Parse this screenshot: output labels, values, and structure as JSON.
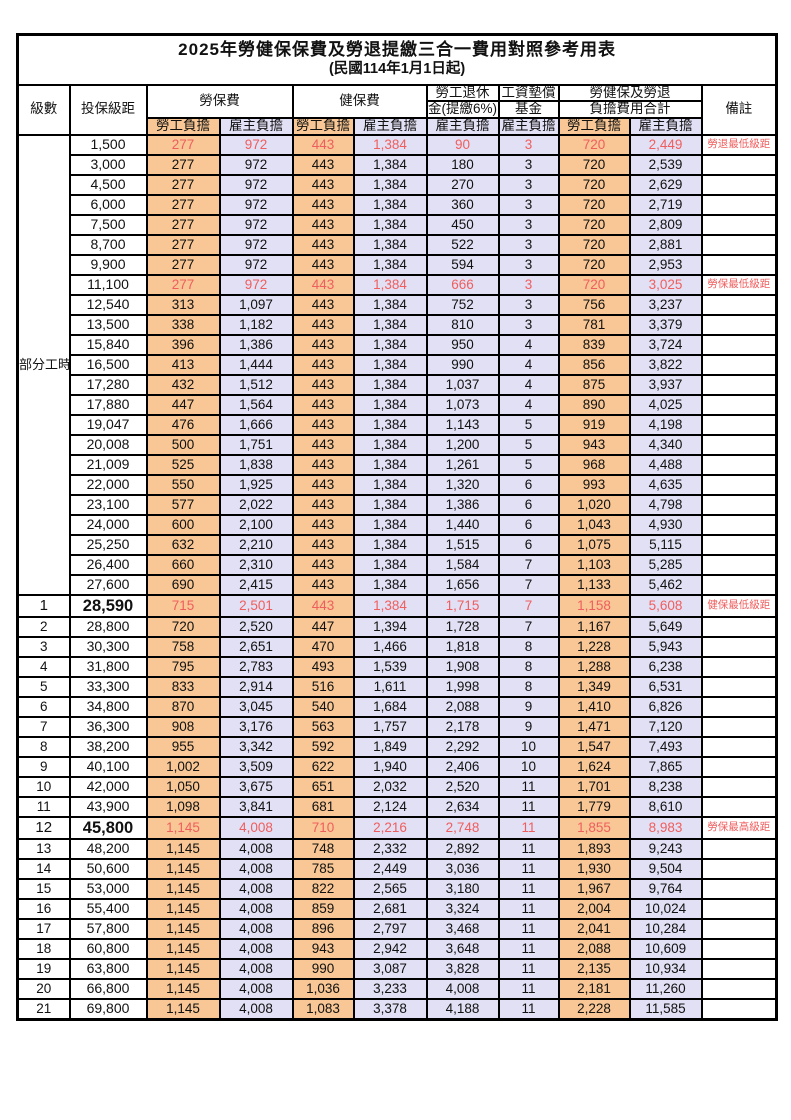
{
  "title": "2025年勞健保保費及勞退提繳三合一費用對照參考用表",
  "subtitle": "(民國114年1月1日起)",
  "colors": {
    "employee_bg": "#f8c795",
    "employer_bg": "#e2e0f4",
    "red_text": "#ef5e5e",
    "grid_line": "#000000"
  },
  "header": {
    "level": "級數",
    "bracket": "投保級距",
    "labor_ins": "勞保費",
    "health_ins": "健保費",
    "pension_line1": "勞工退休",
    "pension_line2": "金(提繳6%)",
    "wage_fund_line1": "工資墊償",
    "wage_fund_line2": "基金",
    "total_line1": "勞健保及勞退",
    "total_line2": "負擔費用合計",
    "remark": "備註",
    "employee_label": "勞工負擔",
    "employer_label": "雇主負擔"
  },
  "part_time_label": "部分工時",
  "rows": [
    {
      "level": "",
      "bracket": "1,500",
      "values": [
        "277",
        "972",
        "443",
        "1,384",
        "90",
        "3",
        "720",
        "2,449"
      ],
      "remark": "勞退最低級距",
      "red": true,
      "emph": false
    },
    {
      "level": "",
      "bracket": "3,000",
      "values": [
        "277",
        "972",
        "443",
        "1,384",
        "180",
        "3",
        "720",
        "2,539"
      ],
      "remark": "",
      "red": false,
      "emph": false
    },
    {
      "level": "",
      "bracket": "4,500",
      "values": [
        "277",
        "972",
        "443",
        "1,384",
        "270",
        "3",
        "720",
        "2,629"
      ],
      "remark": "",
      "red": false,
      "emph": false
    },
    {
      "level": "",
      "bracket": "6,000",
      "values": [
        "277",
        "972",
        "443",
        "1,384",
        "360",
        "3",
        "720",
        "2,719"
      ],
      "remark": "",
      "red": false,
      "emph": false
    },
    {
      "level": "",
      "bracket": "7,500",
      "values": [
        "277",
        "972",
        "443",
        "1,384",
        "450",
        "3",
        "720",
        "2,809"
      ],
      "remark": "",
      "red": false,
      "emph": false
    },
    {
      "level": "",
      "bracket": "8,700",
      "values": [
        "277",
        "972",
        "443",
        "1,384",
        "522",
        "3",
        "720",
        "2,881"
      ],
      "remark": "",
      "red": false,
      "emph": false
    },
    {
      "level": "",
      "bracket": "9,900",
      "values": [
        "277",
        "972",
        "443",
        "1,384",
        "594",
        "3",
        "720",
        "2,953"
      ],
      "remark": "",
      "red": false,
      "emph": false
    },
    {
      "level": "",
      "bracket": "11,100",
      "values": [
        "277",
        "972",
        "443",
        "1,384",
        "666",
        "3",
        "720",
        "3,025"
      ],
      "remark": "勞保最低級距",
      "red": true,
      "emph": false
    },
    {
      "level": "",
      "bracket": "12,540",
      "values": [
        "313",
        "1,097",
        "443",
        "1,384",
        "752",
        "3",
        "756",
        "3,237"
      ],
      "remark": "",
      "red": false,
      "emph": false
    },
    {
      "level": "",
      "bracket": "13,500",
      "values": [
        "338",
        "1,182",
        "443",
        "1,384",
        "810",
        "3",
        "781",
        "3,379"
      ],
      "remark": "",
      "red": false,
      "emph": false
    },
    {
      "level": "",
      "bracket": "15,840",
      "values": [
        "396",
        "1,386",
        "443",
        "1,384",
        "950",
        "4",
        "839",
        "3,724"
      ],
      "remark": "",
      "red": false,
      "emph": false
    },
    {
      "level": "",
      "bracket": "16,500",
      "values": [
        "413",
        "1,444",
        "443",
        "1,384",
        "990",
        "4",
        "856",
        "3,822"
      ],
      "remark": "",
      "red": false,
      "emph": false
    },
    {
      "level": "",
      "bracket": "17,280",
      "values": [
        "432",
        "1,512",
        "443",
        "1,384",
        "1,037",
        "4",
        "875",
        "3,937"
      ],
      "remark": "",
      "red": false,
      "emph": false
    },
    {
      "level": "",
      "bracket": "17,880",
      "values": [
        "447",
        "1,564",
        "443",
        "1,384",
        "1,073",
        "4",
        "890",
        "4,025"
      ],
      "remark": "",
      "red": false,
      "emph": false
    },
    {
      "level": "",
      "bracket": "19,047",
      "values": [
        "476",
        "1,666",
        "443",
        "1,384",
        "1,143",
        "5",
        "919",
        "4,198"
      ],
      "remark": "",
      "red": false,
      "emph": false
    },
    {
      "level": "",
      "bracket": "20,008",
      "values": [
        "500",
        "1,751",
        "443",
        "1,384",
        "1,200",
        "5",
        "943",
        "4,340"
      ],
      "remark": "",
      "red": false,
      "emph": false
    },
    {
      "level": "",
      "bracket": "21,009",
      "values": [
        "525",
        "1,838",
        "443",
        "1,384",
        "1,261",
        "5",
        "968",
        "4,488"
      ],
      "remark": "",
      "red": false,
      "emph": false
    },
    {
      "level": "",
      "bracket": "22,000",
      "values": [
        "550",
        "1,925",
        "443",
        "1,384",
        "1,320",
        "6",
        "993",
        "4,635"
      ],
      "remark": "",
      "red": false,
      "emph": false
    },
    {
      "level": "",
      "bracket": "23,100",
      "values": [
        "577",
        "2,022",
        "443",
        "1,384",
        "1,386",
        "6",
        "1,020",
        "4,798"
      ],
      "remark": "",
      "red": false,
      "emph": false
    },
    {
      "level": "",
      "bracket": "24,000",
      "values": [
        "600",
        "2,100",
        "443",
        "1,384",
        "1,440",
        "6",
        "1,043",
        "4,930"
      ],
      "remark": "",
      "red": false,
      "emph": false
    },
    {
      "level": "",
      "bracket": "25,250",
      "values": [
        "632",
        "2,210",
        "443",
        "1,384",
        "1,515",
        "6",
        "1,075",
        "5,115"
      ],
      "remark": "",
      "red": false,
      "emph": false
    },
    {
      "level": "",
      "bracket": "26,400",
      "values": [
        "660",
        "2,310",
        "443",
        "1,384",
        "1,584",
        "7",
        "1,103",
        "5,285"
      ],
      "remark": "",
      "red": false,
      "emph": false
    },
    {
      "level": "",
      "bracket": "27,600",
      "values": [
        "690",
        "2,415",
        "443",
        "1,384",
        "1,656",
        "7",
        "1,133",
        "5,462"
      ],
      "remark": "",
      "red": false,
      "emph": false
    },
    {
      "level": "1",
      "bracket": "28,590",
      "values": [
        "715",
        "2,501",
        "443",
        "1,384",
        "1,715",
        "7",
        "1,158",
        "5,608"
      ],
      "remark": "健保最低級距",
      "red": true,
      "emph": true
    },
    {
      "level": "2",
      "bracket": "28,800",
      "values": [
        "720",
        "2,520",
        "447",
        "1,394",
        "1,728",
        "7",
        "1,167",
        "5,649"
      ],
      "remark": "",
      "red": false,
      "emph": false
    },
    {
      "level": "3",
      "bracket": "30,300",
      "values": [
        "758",
        "2,651",
        "470",
        "1,466",
        "1,818",
        "8",
        "1,228",
        "5,943"
      ],
      "remark": "",
      "red": false,
      "emph": false
    },
    {
      "level": "4",
      "bracket": "31,800",
      "values": [
        "795",
        "2,783",
        "493",
        "1,539",
        "1,908",
        "8",
        "1,288",
        "6,238"
      ],
      "remark": "",
      "red": false,
      "emph": false
    },
    {
      "level": "5",
      "bracket": "33,300",
      "values": [
        "833",
        "2,914",
        "516",
        "1,611",
        "1,998",
        "8",
        "1,349",
        "6,531"
      ],
      "remark": "",
      "red": false,
      "emph": false
    },
    {
      "level": "6",
      "bracket": "34,800",
      "values": [
        "870",
        "3,045",
        "540",
        "1,684",
        "2,088",
        "9",
        "1,410",
        "6,826"
      ],
      "remark": "",
      "red": false,
      "emph": false
    },
    {
      "level": "7",
      "bracket": "36,300",
      "values": [
        "908",
        "3,176",
        "563",
        "1,757",
        "2,178",
        "9",
        "1,471",
        "7,120"
      ],
      "remark": "",
      "red": false,
      "emph": false
    },
    {
      "level": "8",
      "bracket": "38,200",
      "values": [
        "955",
        "3,342",
        "592",
        "1,849",
        "2,292",
        "10",
        "1,547",
        "7,493"
      ],
      "remark": "",
      "red": false,
      "emph": false
    },
    {
      "level": "9",
      "bracket": "40,100",
      "values": [
        "1,002",
        "3,509",
        "622",
        "1,940",
        "2,406",
        "10",
        "1,624",
        "7,865"
      ],
      "remark": "",
      "red": false,
      "emph": false
    },
    {
      "level": "10",
      "bracket": "42,000",
      "values": [
        "1,050",
        "3,675",
        "651",
        "2,032",
        "2,520",
        "11",
        "1,701",
        "8,238"
      ],
      "remark": "",
      "red": false,
      "emph": false
    },
    {
      "level": "11",
      "bracket": "43,900",
      "values": [
        "1,098",
        "3,841",
        "681",
        "2,124",
        "2,634",
        "11",
        "1,779",
        "8,610"
      ],
      "remark": "",
      "red": false,
      "emph": false
    },
    {
      "level": "12",
      "bracket": "45,800",
      "values": [
        "1,145",
        "4,008",
        "710",
        "2,216",
        "2,748",
        "11",
        "1,855",
        "8,983"
      ],
      "remark": "勞保最高級距",
      "red": true,
      "emph": true
    },
    {
      "level": "13",
      "bracket": "48,200",
      "values": [
        "1,145",
        "4,008",
        "748",
        "2,332",
        "2,892",
        "11",
        "1,893",
        "9,243"
      ],
      "remark": "",
      "red": false,
      "emph": false
    },
    {
      "level": "14",
      "bracket": "50,600",
      "values": [
        "1,145",
        "4,008",
        "785",
        "2,449",
        "3,036",
        "11",
        "1,930",
        "9,504"
      ],
      "remark": "",
      "red": false,
      "emph": false
    },
    {
      "level": "15",
      "bracket": "53,000",
      "values": [
        "1,145",
        "4,008",
        "822",
        "2,565",
        "3,180",
        "11",
        "1,967",
        "9,764"
      ],
      "remark": "",
      "red": false,
      "emph": false
    },
    {
      "level": "16",
      "bracket": "55,400",
      "values": [
        "1,145",
        "4,008",
        "859",
        "2,681",
        "3,324",
        "11",
        "2,004",
        "10,024"
      ],
      "remark": "",
      "red": false,
      "emph": false
    },
    {
      "level": "17",
      "bracket": "57,800",
      "values": [
        "1,145",
        "4,008",
        "896",
        "2,797",
        "3,468",
        "11",
        "2,041",
        "10,284"
      ],
      "remark": "",
      "red": false,
      "emph": false
    },
    {
      "level": "18",
      "bracket": "60,800",
      "values": [
        "1,145",
        "4,008",
        "943",
        "2,942",
        "3,648",
        "11",
        "2,088",
        "10,609"
      ],
      "remark": "",
      "red": false,
      "emph": false
    },
    {
      "level": "19",
      "bracket": "63,800",
      "values": [
        "1,145",
        "4,008",
        "990",
        "3,087",
        "3,828",
        "11",
        "2,135",
        "10,934"
      ],
      "remark": "",
      "red": false,
      "emph": false
    },
    {
      "level": "20",
      "bracket": "66,800",
      "values": [
        "1,145",
        "4,008",
        "1,036",
        "3,233",
        "4,008",
        "11",
        "2,181",
        "11,260"
      ],
      "remark": "",
      "red": false,
      "emph": false
    },
    {
      "level": "21",
      "bracket": "69,800",
      "values": [
        "1,145",
        "4,008",
        "1,083",
        "3,378",
        "4,188",
        "11",
        "2,228",
        "11,585"
      ],
      "remark": "",
      "red": false,
      "emph": false
    }
  ]
}
